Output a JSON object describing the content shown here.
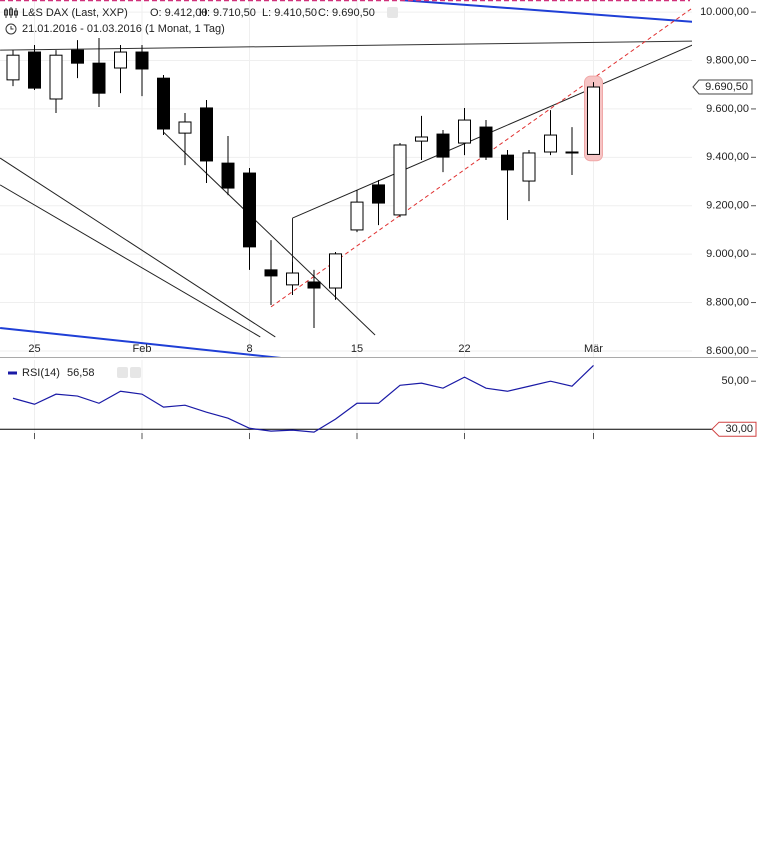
{
  "header": {
    "instrument": "L&S DAX (Last, XXP)",
    "ohlc": [
      "O: 9.412,00",
      "H: 9.710,50",
      "L: 9.410,50",
      "C: 9.690,50"
    ],
    "period": "21.01.2016 - 01.03.2016 (1 Monat, 1 Tag)"
  },
  "chart_data": [
    {
      "type": "candlestick",
      "categories": [
        null,
        "25",
        null,
        null,
        null,
        null,
        "Feb",
        null,
        null,
        null,
        null,
        "8",
        null,
        null,
        null,
        null,
        "15",
        null,
        null,
        null,
        null,
        "22",
        null,
        null,
        null,
        null,
        null,
        "Mär"
      ],
      "open": [
        9720,
        9835,
        9641,
        9843,
        9789,
        9769,
        9835,
        9727,
        9500,
        9604,
        9376,
        9335,
        8935,
        8873,
        8885,
        8860,
        9100,
        9286,
        9162,
        9467,
        9496,
        9459,
        9525,
        9409,
        9302,
        9422,
        9422,
        9412
      ],
      "high": [
        9843,
        9864,
        9843,
        9884,
        9893,
        9864,
        9864,
        9740,
        9583,
        9637,
        9488,
        9356,
        9058,
        8968,
        8935,
        9009,
        9265,
        9306,
        9459,
        9571,
        9513,
        9604,
        9554,
        9430,
        9430,
        9595,
        9525,
        9710.5
      ],
      "low": [
        9694,
        9678,
        9583,
        9727,
        9608,
        9665,
        9653,
        9492,
        9368,
        9294,
        9244,
        8935,
        8790,
        8831,
        8695,
        8811,
        9091,
        9120,
        9153,
        9389,
        9339,
        9409,
        9389,
        9141,
        9219,
        9409,
        9327,
        9410.5
      ],
      "close": [
        9822,
        9686,
        9822,
        9789,
        9665,
        9835,
        9765,
        9517,
        9546,
        9385,
        9273,
        9030,
        8910,
        8922,
        8860,
        9001,
        9215,
        9211,
        9451,
        9484,
        9401,
        9554,
        9401,
        9348,
        9418,
        9492,
        9418,
        9690.5
      ],
      "up_color": "#ffffff",
      "down_color": "#000000",
      "ylim": [
        8575,
        10050
      ],
      "yticks": [
        {
          "value": 10000,
          "label": "10.000,00"
        },
        {
          "value": 9800,
          "label": "9.800,00"
        },
        {
          "value": 9600,
          "label": "9.600,00"
        },
        {
          "value": 9400,
          "label": "9.400,00"
        },
        {
          "value": 9200,
          "label": "9.200,00"
        },
        {
          "value": 9000,
          "label": "9.000,00"
        },
        {
          "value": 8800,
          "label": "8.800,00"
        },
        {
          "value": 8600,
          "label": "8.600,00"
        }
      ],
      "grid": true,
      "last_label": "9.690,50",
      "lines": [
        {
          "x": [
            18,
            31.6
          ],
          "y": [
            10050,
            9960
          ],
          "color": "#1f3fd6",
          "width": 2,
          "dash": false
        },
        {
          "x": [
            -0.6,
            31.6
          ],
          "y": [
            9843,
            9880
          ],
          "color": "#333333",
          "width": 1,
          "dash": false
        },
        {
          "x": [
            13,
            31.6
          ],
          "y": [
            9149,
            9864
          ],
          "color": "#222222",
          "width": 1,
          "dash": false
        },
        {
          "x": [
            13,
            13
          ],
          "y": [
            8873,
            9149
          ],
          "color": "#222222",
          "width": 1,
          "dash": false
        },
        {
          "x": [
            12,
            31.6
          ],
          "y": [
            8782,
            10017
          ],
          "color": "#e03030",
          "width": 1,
          "dash": true
        },
        {
          "x": [
            7,
            16.84
          ],
          "y": [
            9504,
            8666
          ],
          "color": "#222222",
          "width": 1,
          "dash": false
        },
        {
          "x": [
            -0.6,
            12.2
          ],
          "y": [
            9397,
            8658
          ],
          "color": "#222222",
          "width": 1,
          "dash": false
        },
        {
          "x": [
            -0.6,
            11.5
          ],
          "y": [
            9286,
            8658
          ],
          "color": "#222222",
          "width": 1,
          "dash": false
        },
        {
          "x": [
            -0.6,
            13.3
          ],
          "y": [
            8695,
            8563
          ],
          "color": "#1f3fd6",
          "width": 2,
          "dash": false
        }
      ]
    },
    {
      "type": "line",
      "series": [
        {
          "name": "RSI(14)",
          "color": "#1a1aa6",
          "values": [
            42.9,
            40.4,
            44.6,
            43.8,
            40.8,
            45.8,
            44.6,
            39.2,
            40.0,
            37.1,
            34.6,
            30.4,
            29.2,
            29.6,
            28.8,
            34.2,
            40.8,
            40.8,
            48.3,
            49.2,
            47.1,
            51.7,
            47.1,
            45.8,
            47.9,
            50.0,
            47.9,
            56.58
          ]
        }
      ],
      "legend_value": "56,58",
      "ylim": [
        25.5,
        58
      ],
      "yticks": [
        {
          "value": 50,
          "label": "50,00"
        },
        {
          "value": 30,
          "label": "30,00"
        }
      ],
      "levels": [
        30
      ]
    }
  ]
}
